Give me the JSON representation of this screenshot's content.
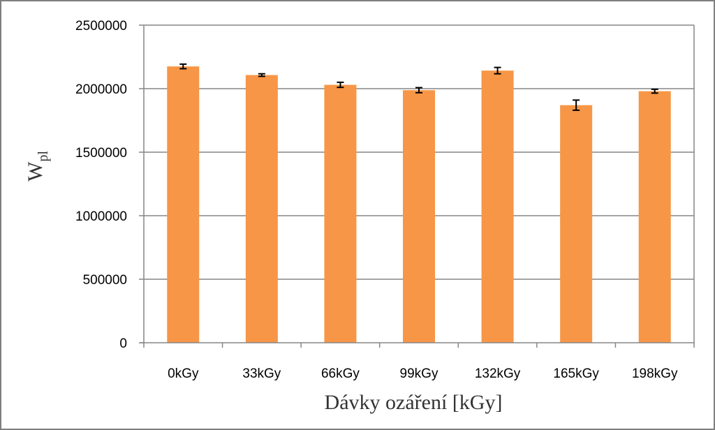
{
  "chart_data": {
    "type": "bar",
    "title": "",
    "xlabel": "Dávky ozáření [kGy]",
    "ylabel": "W",
    "ylabel_sub": "pl",
    "categories": [
      "0kGy",
      "33kGy",
      "66kGy",
      "99kGy",
      "132kGy",
      "165kGy",
      "198kGy"
    ],
    "values": [
      2175000,
      2107000,
      2030000,
      1988000,
      2142000,
      1870000,
      1980000
    ],
    "errors": [
      18000,
      10000,
      20000,
      20000,
      25000,
      40000,
      15000
    ],
    "ylim": [
      0,
      2500000
    ],
    "yticks": [
      0,
      500000,
      1000000,
      1500000,
      2000000,
      2500000
    ],
    "ytick_labels": [
      "0",
      "500000",
      "1000000",
      "1500000",
      "2000000",
      "2500000"
    ],
    "grid": true,
    "legend": "none",
    "bar_color": "#f79646",
    "grid_color": "#868686"
  }
}
